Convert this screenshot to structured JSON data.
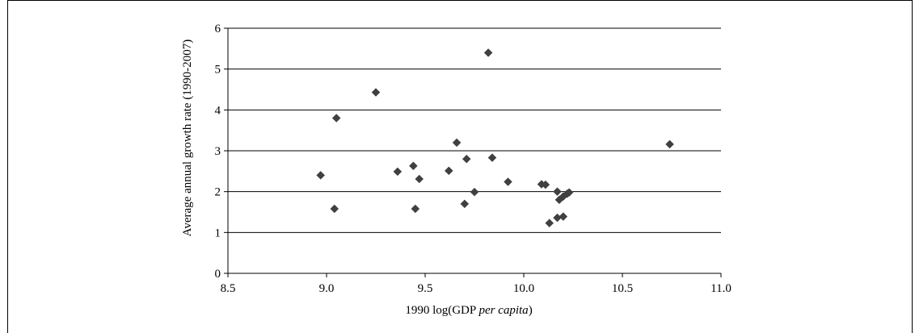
{
  "chart_data": {
    "type": "scatter",
    "title": "",
    "xlabel_parts": [
      "1990 log(GDP ",
      "per capita",
      ")"
    ],
    "ylabel": "Average annual growth rate (1990-2007)",
    "xlim": [
      8.5,
      11.0
    ],
    "ylim": [
      0,
      6
    ],
    "xticks": [
      "8.5",
      "9.0",
      "9.5",
      "10.0",
      "10.5",
      "11.0"
    ],
    "yticks": [
      "0",
      "1",
      "2",
      "3",
      "4",
      "5",
      "6"
    ],
    "grid": "horizontal",
    "marker_color": "#404040",
    "points": [
      {
        "x": 8.97,
        "y": 2.4
      },
      {
        "x": 9.04,
        "y": 1.58
      },
      {
        "x": 9.05,
        "y": 3.8
      },
      {
        "x": 9.25,
        "y": 4.43
      },
      {
        "x": 9.36,
        "y": 2.49
      },
      {
        "x": 9.44,
        "y": 2.63
      },
      {
        "x": 9.45,
        "y": 1.58
      },
      {
        "x": 9.47,
        "y": 2.31
      },
      {
        "x": 9.62,
        "y": 2.51
      },
      {
        "x": 9.66,
        "y": 3.2
      },
      {
        "x": 9.7,
        "y": 1.7
      },
      {
        "x": 9.71,
        "y": 2.8
      },
      {
        "x": 9.75,
        "y": 1.99
      },
      {
        "x": 9.82,
        "y": 5.4
      },
      {
        "x": 9.84,
        "y": 2.83
      },
      {
        "x": 9.92,
        "y": 2.24
      },
      {
        "x": 10.09,
        "y": 2.18
      },
      {
        "x": 10.11,
        "y": 2.17
      },
      {
        "x": 10.13,
        "y": 1.23
      },
      {
        "x": 10.17,
        "y": 2.0
      },
      {
        "x": 10.17,
        "y": 1.36
      },
      {
        "x": 10.18,
        "y": 1.8
      },
      {
        "x": 10.2,
        "y": 1.39
      },
      {
        "x": 10.2,
        "y": 1.88
      },
      {
        "x": 10.22,
        "y": 1.95
      },
      {
        "x": 10.23,
        "y": 1.98
      },
      {
        "x": 10.74,
        "y": 3.16
      }
    ]
  }
}
